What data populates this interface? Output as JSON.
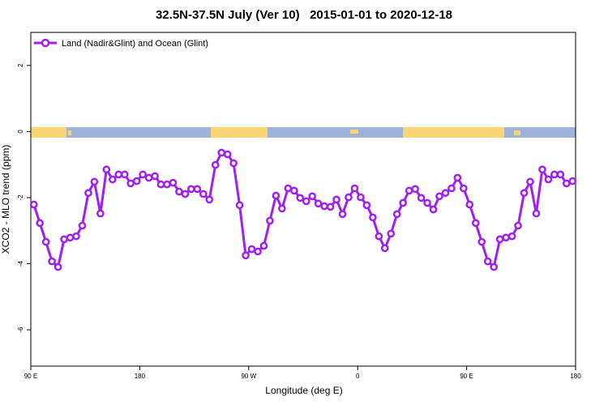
{
  "chart_data": {
    "type": "line",
    "title": "32.5N-37.5N July (Ver 10)   2015-01-01 to 2020-12-18",
    "xlabel": "Longitude (deg E)",
    "ylabel": "XCO2 - MLO trend (ppm)",
    "xlim": [
      90,
      540
    ],
    "ylim": [
      -7.1,
      3
    ],
    "xticks": [
      {
        "value": 90,
        "label": "90 E"
      },
      180,
      {
        "value": 270,
        "label": "90 W"
      },
      {
        "value": 360,
        "label": "0"
      },
      {
        "value": 450,
        "label": "90 E"
      },
      {
        "value": 540,
        "label": "180"
      }
    ],
    "yticks": [
      -6,
      -4,
      -2,
      0,
      2
    ],
    "grid": false,
    "legend": "upper left",
    "x": [
      92.5,
      97.5,
      102.5,
      107.5,
      112.5,
      117.5,
      122.5,
      127.5,
      132.5,
      137.5,
      142.5,
      147.5,
      152.5,
      157.5,
      162.5,
      167.5,
      172.5,
      177.5,
      182.5,
      187.5,
      192.5,
      197.5,
      202.5,
      207.5,
      212.5,
      217.5,
      222.5,
      227.5,
      232.5,
      237.5,
      242.5,
      247.5,
      252.5,
      257.5,
      262.5,
      267.5,
      272.5,
      277.5,
      282.5,
      287.5,
      292.5,
      297.5,
      302.5,
      307.5,
      312.5,
      317.5,
      322.5,
      327.5,
      332.5,
      337.5,
      342.5,
      347.5,
      352.5,
      357.5,
      362.5,
      367.5,
      372.5,
      377.5,
      382.5,
      387.5,
      392.5,
      397.5,
      402.5,
      407.5,
      412.5,
      417.5,
      422.5,
      427.5,
      432.5,
      437.5,
      442.5,
      447.5,
      452.5,
      457.5,
      462.5,
      467.5,
      472.5,
      477.5,
      482.5,
      487.5,
      492.5,
      497.5,
      502.5,
      507.5,
      512.5,
      517.5,
      522.5,
      527.5,
      532.5,
      537.5
    ],
    "series": [
      {
        "name": "Land (Nadir&Glint) and Ocean (Glint)",
        "color": "#a020f0",
        "values": [
          -2.21,
          -2.77,
          -3.34,
          -3.93,
          -4.1,
          -3.26,
          -3.21,
          -3.17,
          -2.85,
          -1.86,
          -1.52,
          -2.48,
          -1.15,
          -1.45,
          -1.3,
          -1.3,
          -1.57,
          -1.5,
          -1.3,
          -1.4,
          -1.35,
          -1.6,
          -1.6,
          -1.55,
          -1.82,
          -1.89,
          -1.74,
          -1.74,
          -1.89,
          -2.06,
          -1.01,
          -0.64,
          -0.69,
          -0.96,
          -2.23,
          -3.75,
          -3.56,
          -3.63,
          -3.46,
          -2.7,
          -1.94,
          -2.33,
          -1.72,
          -1.79,
          -2.01,
          -2.11,
          -1.96,
          -2.18,
          -2.26,
          -2.28,
          -2.06,
          -2.5,
          -1.99,
          -1.72,
          -1.99,
          -2.23,
          -2.6,
          -3.17,
          -3.53,
          -3.09,
          -2.5,
          -2.16,
          -1.79,
          -1.74,
          -2.01,
          -2.16,
          -2.36,
          -1.96,
          -1.86,
          -1.72,
          -1.4,
          -1.72,
          -2.21,
          -2.77,
          -3.34,
          -3.93,
          -4.1,
          -3.26,
          -3.21,
          -3.17,
          -2.85,
          -1.86,
          -1.52,
          -2.48,
          -1.15,
          -1.45,
          -1.3,
          -1.3,
          -1.57,
          -1.5
        ]
      }
    ]
  }
}
